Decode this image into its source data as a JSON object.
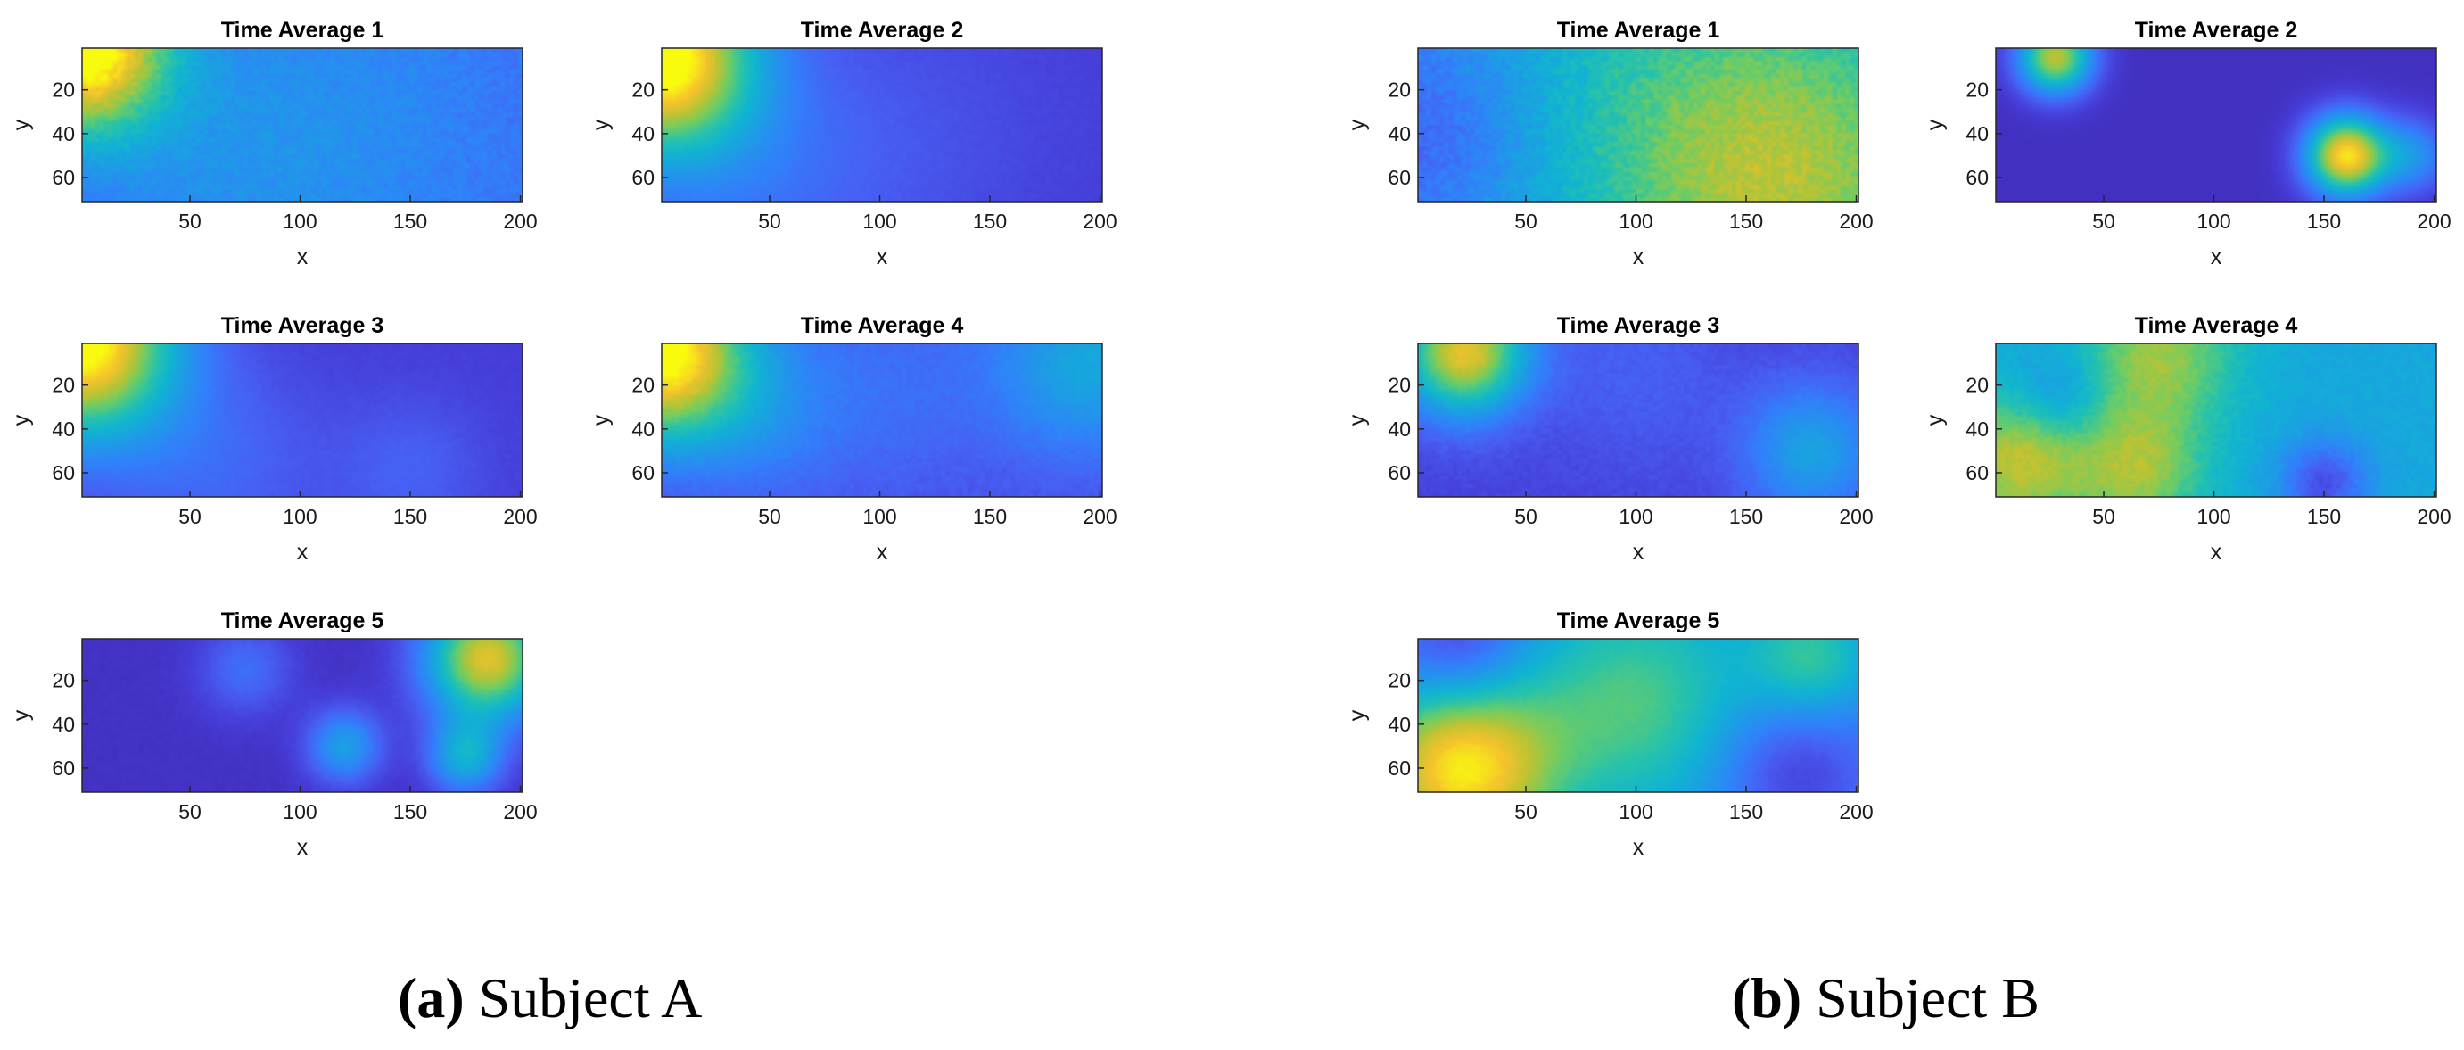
{
  "chart_data": [
    {
      "type": "heatmap",
      "subject": "a",
      "title": "Time Average 1",
      "xlabel": "x",
      "ylabel": "y",
      "xlim": [
        1,
        201
      ],
      "ylim": [
        1,
        71
      ],
      "xticks": [
        "50",
        "100",
        "150",
        "200"
      ],
      "yticks": [
        "20",
        "40",
        "60"
      ],
      "colormap": "parula",
      "base": 0.18,
      "noise": 0.04,
      "blobs": [
        [
          0,
          0,
          28,
          0.85
        ],
        [
          130,
          30,
          80,
          0.12
        ],
        [
          60,
          60,
          60,
          0.1
        ]
      ]
    },
    {
      "type": "heatmap",
      "subject": "a",
      "title": "Time Average 2",
      "xlabel": "x",
      "ylabel": "y",
      "xlim": [
        1,
        201
      ],
      "ylim": [
        1,
        71
      ],
      "xticks": [
        "50",
        "100",
        "150",
        "200"
      ],
      "yticks": [
        "20",
        "40",
        "60"
      ],
      "colormap": "parula",
      "base": 0.1,
      "noise": 0.01,
      "blobs": [
        [
          0,
          5,
          30,
          0.95
        ],
        [
          40,
          60,
          40,
          0.12
        ],
        [
          110,
          40,
          50,
          0.06
        ]
      ]
    },
    {
      "type": "heatmap",
      "subject": "a",
      "title": "Time Average 3",
      "xlabel": "x",
      "ylabel": "y",
      "xlim": [
        1,
        201
      ],
      "ylim": [
        1,
        71
      ],
      "xticks": [
        "50",
        "100",
        "150",
        "200"
      ],
      "yticks": [
        "20",
        "40",
        "60"
      ],
      "colormap": "parula",
      "base": 0.1,
      "noise": 0.01,
      "blobs": [
        [
          0,
          0,
          30,
          0.95
        ],
        [
          60,
          55,
          35,
          0.12
        ],
        [
          150,
          60,
          25,
          0.1
        ]
      ]
    },
    {
      "type": "heatmap",
      "subject": "a",
      "title": "Time Average 4",
      "xlabel": "x",
      "ylabel": "y",
      "xlim": [
        1,
        201
      ],
      "ylim": [
        1,
        71
      ],
      "xticks": [
        "50",
        "100",
        "150",
        "200"
      ],
      "yticks": [
        "20",
        "40",
        "60"
      ],
      "colormap": "parula",
      "base": 0.14,
      "noise": 0.02,
      "blobs": [
        [
          0,
          5,
          28,
          0.9
        ],
        [
          195,
          10,
          30,
          0.3
        ],
        [
          100,
          20,
          40,
          0.1
        ],
        [
          45,
          35,
          25,
          0.12
        ]
      ]
    },
    {
      "type": "heatmap",
      "subject": "a",
      "title": "Time Average 5",
      "xlabel": "x",
      "ylabel": "y",
      "xlim": [
        1,
        201
      ],
      "ylim": [
        1,
        71
      ],
      "xticks": [
        "50",
        "100",
        "150",
        "200"
      ],
      "yticks": [
        "20",
        "40",
        "60"
      ],
      "colormap": "parula",
      "base": 0.06,
      "noise": 0.01,
      "blobs": [
        [
          185,
          10,
          20,
          0.8
        ],
        [
          175,
          55,
          12,
          0.4
        ],
        [
          120,
          50,
          12,
          0.35
        ],
        [
          75,
          15,
          15,
          0.18
        ]
      ]
    },
    {
      "type": "heatmap",
      "subject": "b",
      "title": "Time Average 1",
      "xlabel": "x",
      "ylabel": "y",
      "xlim": [
        1,
        201
      ],
      "ylim": [
        1,
        71
      ],
      "xticks": [
        "50",
        "100",
        "150",
        "200"
      ],
      "yticks": [
        "20",
        "40",
        "60"
      ],
      "colormap": "parula",
      "base": 0.42,
      "noise": 0.05,
      "blobs": [
        [
          165,
          60,
          55,
          0.35
        ],
        [
          0,
          40,
          40,
          -0.22
        ],
        [
          90,
          20,
          60,
          0.08
        ]
      ]
    },
    {
      "type": "heatmap",
      "subject": "b",
      "title": "Time Average 2",
      "xlabel": "x",
      "ylabel": "y",
      "xlim": [
        1,
        201
      ],
      "ylim": [
        1,
        71
      ],
      "xticks": [
        "50",
        "100",
        "150",
        "200"
      ],
      "yticks": [
        "20",
        "40",
        "60"
      ],
      "colormap": "parula",
      "base": 0.05,
      "noise": 0.0,
      "blobs": [
        [
          160,
          50,
          13,
          0.9
        ],
        [
          28,
          5,
          12,
          0.75
        ],
        [
          190,
          50,
          12,
          0.3
        ]
      ]
    },
    {
      "type": "heatmap",
      "subject": "b",
      "title": "Time Average 3",
      "xlabel": "x",
      "ylabel": "y",
      "xlim": [
        1,
        201
      ],
      "ylim": [
        1,
        71
      ],
      "xticks": [
        "50",
        "100",
        "150",
        "200"
      ],
      "yticks": [
        "20",
        "40",
        "60"
      ],
      "colormap": "parula",
      "base": 0.12,
      "noise": 0.02,
      "blobs": [
        [
          22,
          5,
          20,
          0.75
        ],
        [
          180,
          50,
          22,
          0.3
        ],
        [
          100,
          15,
          30,
          0.08
        ]
      ]
    },
    {
      "type": "heatmap",
      "subject": "b",
      "title": "Time Average 4",
      "xlabel": "x",
      "ylabel": "y",
      "xlim": [
        1,
        201
      ],
      "ylim": [
        1,
        71
      ],
      "xticks": [
        "50",
        "100",
        "150",
        "200"
      ],
      "yticks": [
        "20",
        "40",
        "60"
      ],
      "colormap": "parula",
      "base": 0.45,
      "noise": 0.03,
      "blobs": [
        [
          10,
          55,
          22,
          0.35
        ],
        [
          75,
          5,
          25,
          0.3
        ],
        [
          65,
          60,
          22,
          0.3
        ],
        [
          150,
          65,
          14,
          -0.3
        ],
        [
          30,
          25,
          14,
          -0.15
        ]
      ]
    },
    {
      "type": "heatmap",
      "subject": "b",
      "title": "Time Average 5",
      "xlabel": "x",
      "ylabel": "y",
      "xlim": [
        1,
        201
      ],
      "ylim": [
        1,
        71
      ],
      "xticks": [
        "50",
        "100",
        "150",
        "200"
      ],
      "yticks": [
        "20",
        "40",
        "60"
      ],
      "colormap": "parula",
      "base": 0.3,
      "noise": 0.01,
      "blobs": [
        [
          20,
          60,
          30,
          0.65
        ],
        [
          100,
          30,
          40,
          0.35
        ],
        [
          180,
          10,
          20,
          0.3
        ],
        [
          20,
          5,
          22,
          -0.25
        ],
        [
          170,
          60,
          25,
          -0.22
        ]
      ]
    }
  ],
  "captions": [
    {
      "letter": "(a)",
      "text": "Subject A"
    },
    {
      "letter": "(b)",
      "text": "Subject B"
    }
  ]
}
